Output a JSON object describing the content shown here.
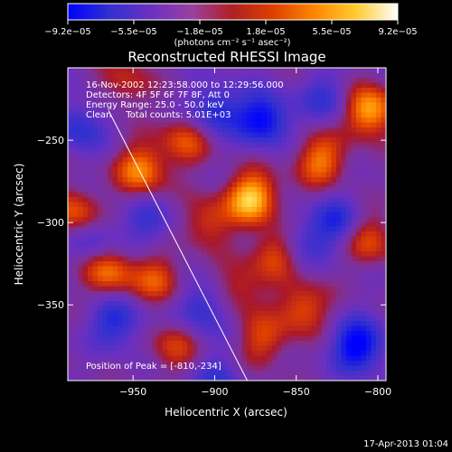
{
  "chart_data": {
    "type": "heatmap",
    "title": "Reconstructed RHESSI Image",
    "xlabel": "Heliocentric X (arcsec)",
    "ylabel": "Heliocentric Y (arcsec)",
    "xlim": [
      -990,
      -795
    ],
    "ylim": [
      -396,
      -206
    ],
    "xticks": [
      -950,
      -900,
      -850,
      -800
    ],
    "xtick_labels": [
      "−950",
      "−900",
      "−850",
      "−800"
    ],
    "yticks": [
      -250,
      -300,
      -350
    ],
    "ytick_labels": [
      "−250",
      "−300",
      "−350"
    ],
    "colorbar": {
      "tick_labels": [
        "−9.2e−05",
        "−5.5e−05",
        "−1.8e−05",
        "1.8e−05",
        "5.5e−05",
        "9.2e−05"
      ],
      "range": [
        -9.2e-05,
        9.2e-05
      ],
      "units": "(photons cm⁻² s⁻¹ asec⁻²)",
      "colors": [
        "#0000ff",
        "#3030d0",
        "#6a30c0",
        "#9a40a0",
        "#b02020",
        "#e04000",
        "#ff8800",
        "#ffcc30",
        "#ffffff"
      ]
    },
    "annotations": [
      "16-Nov-2002 12:23:58.000 to 12:29:56.000",
      "Detectors: 4F 5F 6F 7F 8F, Att 0",
      "Energy Range: 25.0 - 50.0 keV",
      "Clean     Total counts: 5.01E+03"
    ],
    "peak_label": "Position of Peak = [-810,-234]",
    "limb_line": [
      [
        -965,
        -232
      ],
      [
        -880,
        -396
      ]
    ],
    "blobs": [
      {
        "x": -945,
        "y": -268,
        "v": 0.75
      },
      {
        "x": -918,
        "y": -250,
        "v": 0.55
      },
      {
        "x": -877,
        "y": -285,
        "v": 1.0
      },
      {
        "x": -862,
        "y": -318,
        "v": 0.6
      },
      {
        "x": -835,
        "y": -262,
        "v": 0.7
      },
      {
        "x": -806,
        "y": -232,
        "v": 0.95
      },
      {
        "x": -805,
        "y": -310,
        "v": 0.55
      },
      {
        "x": -846,
        "y": -352,
        "v": 0.6
      },
      {
        "x": -870,
        "y": -372,
        "v": 0.5
      },
      {
        "x": -965,
        "y": -330,
        "v": 0.7
      },
      {
        "x": -935,
        "y": -335,
        "v": 0.55
      },
      {
        "x": -985,
        "y": -295,
        "v": 0.65
      },
      {
        "x": -905,
        "y": -300,
        "v": 0.5
      },
      {
        "x": -925,
        "y": -375,
        "v": 0.45
      },
      {
        "x": -885,
        "y": -340,
        "v": 0.45
      },
      {
        "x": -955,
        "y": -215,
        "v": 0.4
      },
      {
        "x": -983,
        "y": -242,
        "v": -0.5
      },
      {
        "x": -975,
        "y": -310,
        "v": -0.45
      },
      {
        "x": -960,
        "y": -360,
        "v": -0.6
      },
      {
        "x": -940,
        "y": -300,
        "v": -0.4
      },
      {
        "x": -908,
        "y": -352,
        "v": -0.55
      },
      {
        "x": -900,
        "y": -232,
        "v": -0.6
      },
      {
        "x": -870,
        "y": -237,
        "v": -0.85
      },
      {
        "x": -825,
        "y": -300,
        "v": -0.55
      },
      {
        "x": -812,
        "y": -375,
        "v": -0.9
      },
      {
        "x": -848,
        "y": -312,
        "v": -0.4
      },
      {
        "x": -830,
        "y": -225,
        "v": -0.45
      },
      {
        "x": -898,
        "y": -395,
        "v": -0.4
      }
    ]
  },
  "footer": {
    "timestamp": "17-Apr-2013 01:04"
  }
}
